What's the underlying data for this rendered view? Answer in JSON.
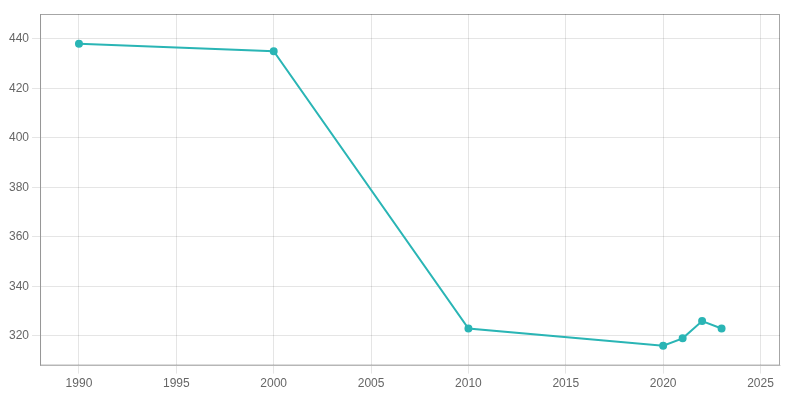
{
  "chart_data": {
    "type": "line",
    "x": [
      1990,
      2000,
      2010,
      2020,
      2021,
      2022,
      2023
    ],
    "values": [
      438,
      435,
      323,
      316,
      319,
      326,
      323
    ],
    "color": "#2ab5b5",
    "marker": "circle",
    "xlim": [
      1988,
      2026
    ],
    "ylim": [
      308,
      450
    ],
    "xticks": [
      1990,
      1995,
      2000,
      2005,
      2010,
      2015,
      2020,
      2025
    ],
    "yticks": [
      320,
      340,
      360,
      380,
      400,
      420,
      440
    ],
    "grid": true
  }
}
